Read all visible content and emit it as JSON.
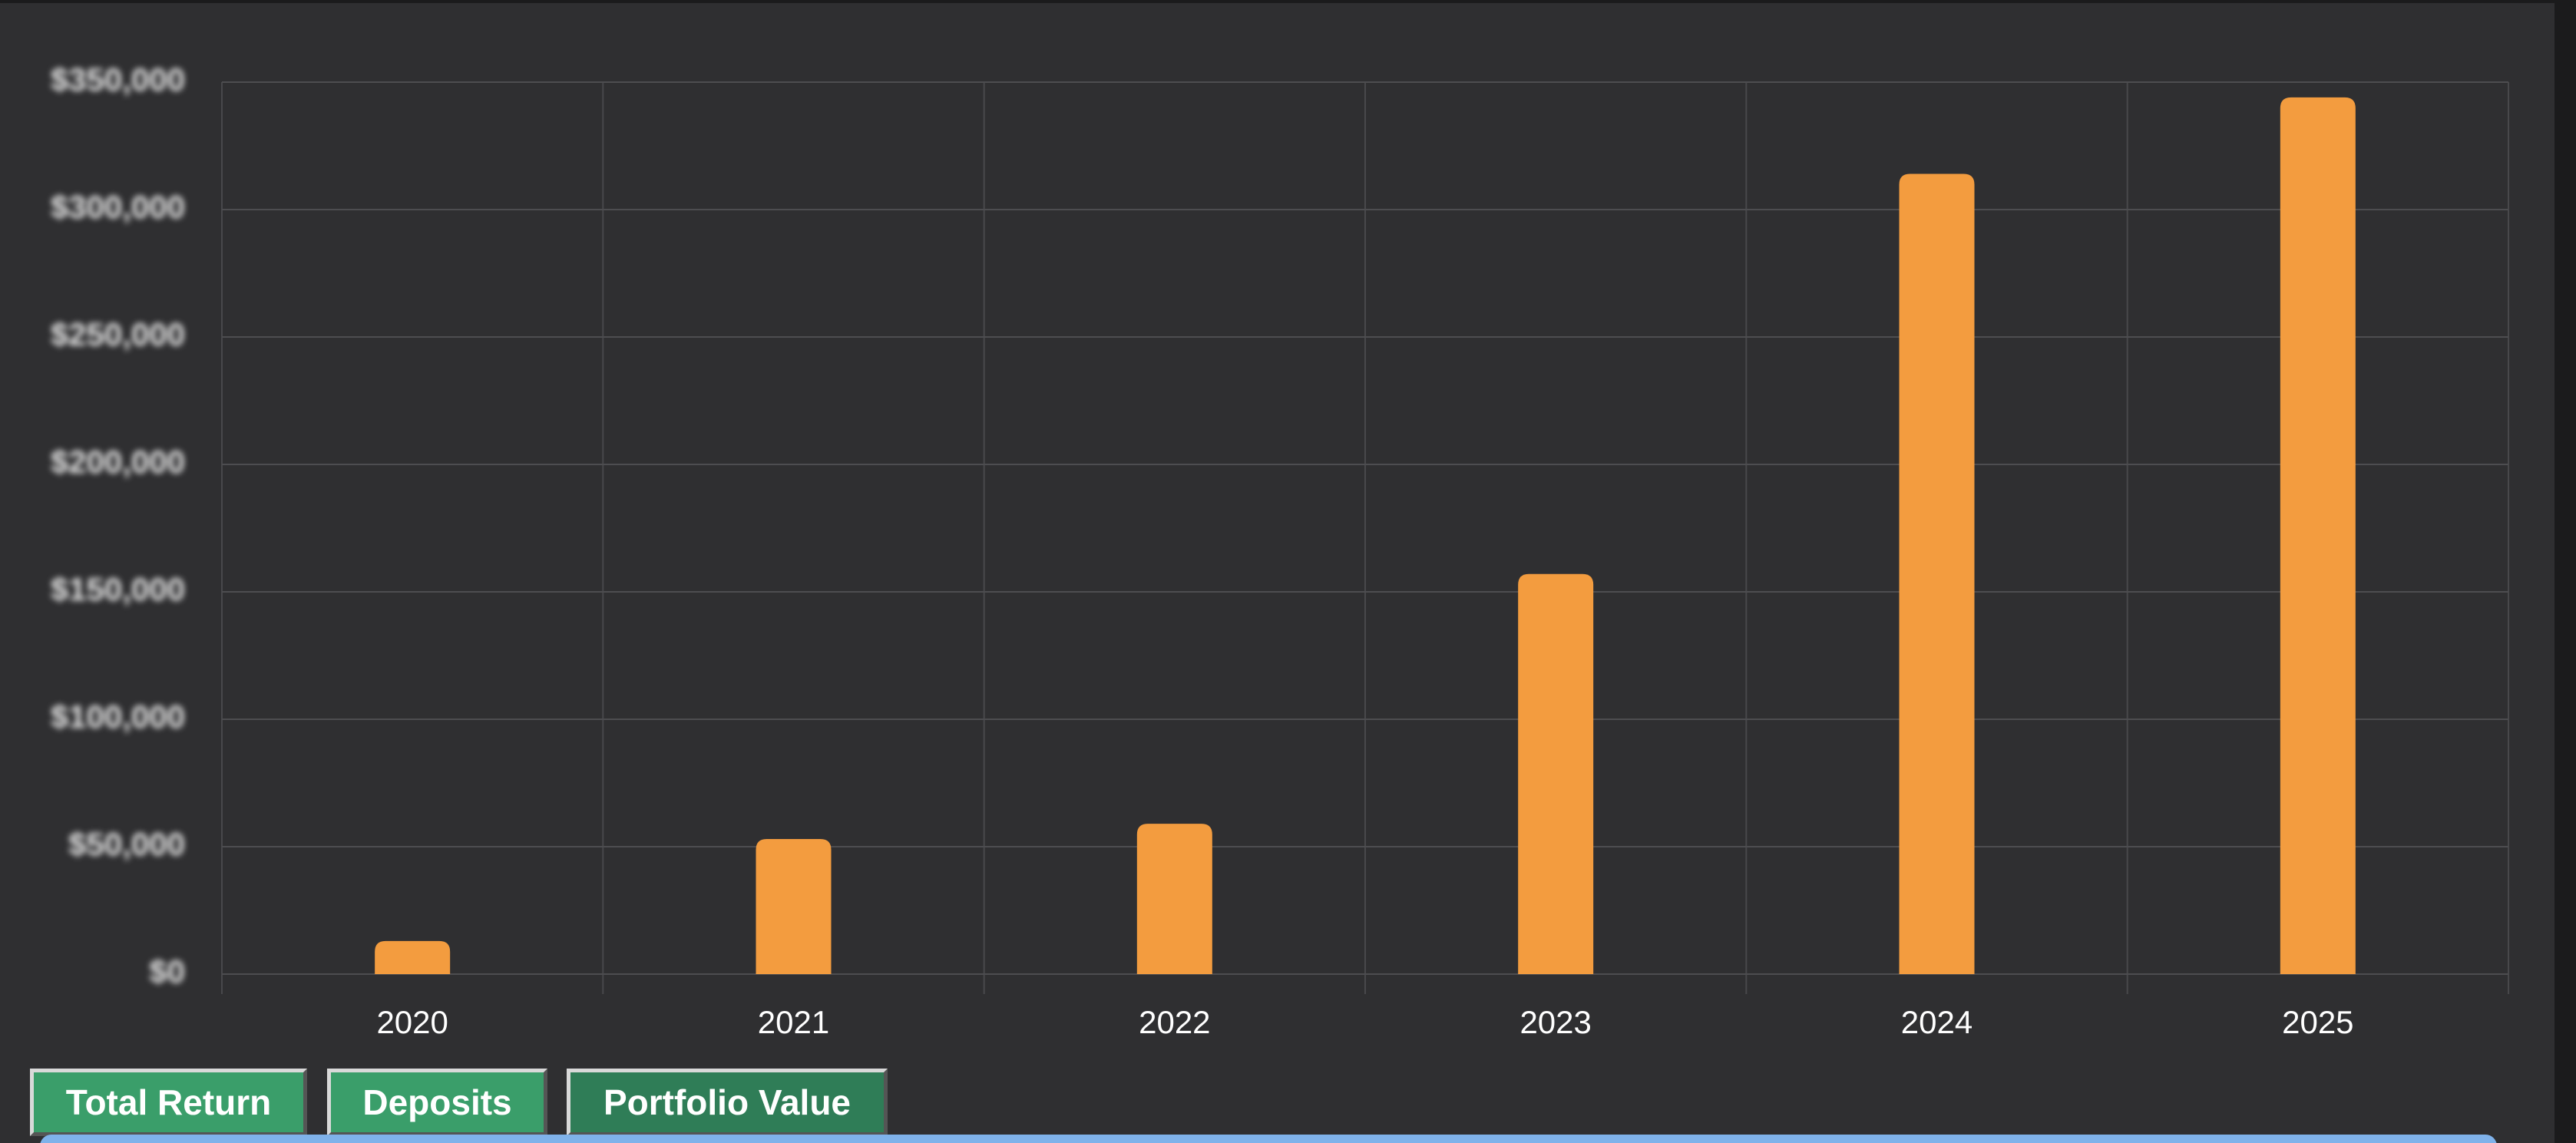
{
  "chart_data": {
    "type": "bar",
    "categories": [
      "2020",
      "2021",
      "2022",
      "2023",
      "2024",
      "2025"
    ],
    "values": [
      13000,
      53000,
      59000,
      157000,
      314000,
      344000
    ],
    "color": "#f39c3f",
    "ylim": [
      0,
      350000
    ],
    "yticks": [
      {
        "value": 0,
        "label": "$0"
      },
      {
        "value": 50000,
        "label": "$50,000"
      },
      {
        "value": 100000,
        "label": "$100,000"
      },
      {
        "value": 150000,
        "label": "$150,000"
      },
      {
        "value": 200000,
        "label": "$200,000"
      },
      {
        "value": 250000,
        "label": "$250,000"
      },
      {
        "value": 300000,
        "label": "$300,000"
      },
      {
        "value": 350000,
        "label": "$350,000"
      }
    ],
    "grid": true
  },
  "controls": {
    "buttons": [
      "Total Return",
      "Deposits",
      "Portfolio Value"
    ]
  }
}
